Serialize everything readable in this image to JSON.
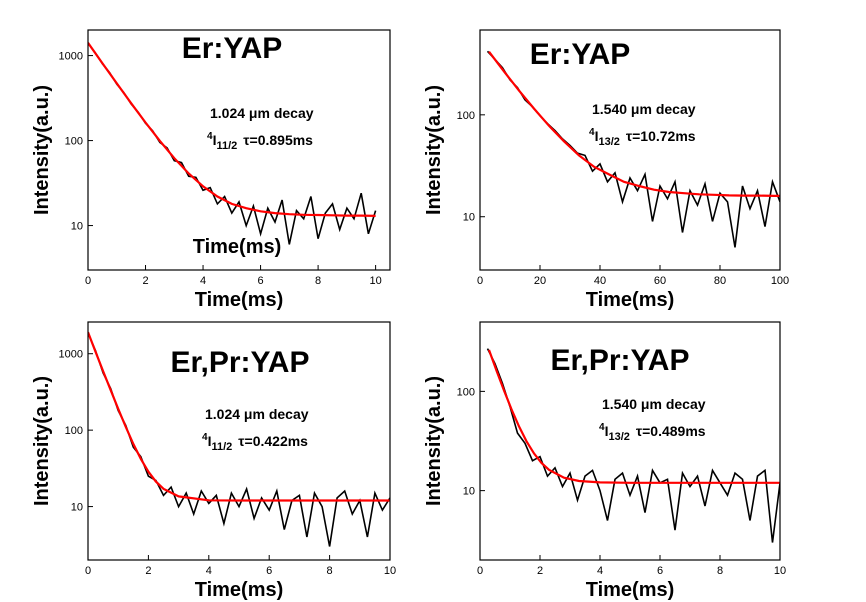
{
  "chart_data": [
    {
      "type": "line",
      "title": "Er:YAP",
      "xlabel": "Time(ms)",
      "ylabel": "Intensity(a.u.)",
      "note": "Time(ms)",
      "annotation": {
        "decay": "1.024 μm decay",
        "level": {
          "sup": "4",
          "base": "I",
          "sub": "11/2"
        },
        "lifetime": "τ=0.895ms"
      },
      "xlim": [
        0,
        10.5
      ],
      "xticks": [
        0,
        2,
        4,
        6,
        8,
        10
      ],
      "ylim": [
        3,
        2000
      ],
      "yticks": [
        10,
        100,
        1000
      ],
      "log_y": true,
      "series": [
        {
          "color": "#000000",
          "x": [
            0,
            0.25,
            0.5,
            0.75,
            1,
            1.25,
            1.5,
            1.75,
            2,
            2.25,
            2.5,
            2.75,
            3,
            3.25,
            3.5,
            3.75,
            4,
            4.25,
            4.5,
            4.75,
            5,
            5.25,
            5.5,
            5.75,
            6,
            6.25,
            6.5,
            6.75,
            7,
            7.25,
            7.5,
            7.75,
            8,
            8.25,
            8.5,
            8.75,
            9,
            9.25,
            9.5,
            9.75,
            10
          ],
          "values": [
            1400,
            1080,
            800,
            630,
            460,
            365,
            270,
            215,
            160,
            130,
            95,
            82,
            58,
            55,
            38,
            37,
            26,
            28,
            18,
            22,
            14,
            19,
            10,
            17,
            8,
            16,
            11,
            20,
            6,
            15,
            12,
            22,
            7,
            14,
            18,
            9,
            16,
            12,
            24,
            8,
            15
          ]
        },
        {
          "color": "#ff0000",
          "x": [
            0,
            0.5,
            1,
            1.5,
            2,
            2.5,
            3,
            3.5,
            4,
            4.5,
            5,
            5.5,
            6,
            6.5,
            7,
            7.5,
            8,
            8.5,
            9,
            9.5,
            10
          ],
          "values": [
            1413,
            814,
            471,
            275,
            163,
            99,
            62,
            41,
            29,
            22,
            18,
            16,
            14.7,
            14,
            13.6,
            13.4,
            13.3,
            13.2,
            13.1,
            13.1,
            13
          ]
        }
      ]
    },
    {
      "type": "line",
      "title": "Er:YAP",
      "xlabel": "Time(ms)",
      "ylabel": "Intensity(a.u.)",
      "annotation": {
        "decay": "1.540 μm decay",
        "level": {
          "sup": "4",
          "base": "I",
          "sub": "13/2"
        },
        "lifetime": "τ=10.72ms"
      },
      "xlim": [
        0,
        100
      ],
      "xticks": [
        0,
        20,
        40,
        60,
        80,
        100
      ],
      "ylim": [
        3,
        680
      ],
      "yticks": [
        10,
        100
      ],
      "log_y": true,
      "series": [
        {
          "color": "#000000",
          "x": [
            2.5,
            5,
            7.5,
            10,
            12.5,
            15,
            17.5,
            20,
            22.5,
            25,
            27.5,
            30,
            32.5,
            35,
            37.5,
            40,
            42.5,
            45,
            47.5,
            50,
            52.5,
            55,
            57.5,
            60,
            62.5,
            65,
            67.5,
            70,
            72.5,
            75,
            77.5,
            80,
            82.5,
            85,
            87.5,
            90,
            92.5,
            95,
            97.5,
            100
          ],
          "values": [
            420,
            350,
            290,
            220,
            185,
            140,
            120,
            98,
            82,
            70,
            58,
            50,
            42,
            40,
            28,
            33,
            22,
            27,
            14,
            24,
            18,
            26,
            9,
            20,
            15,
            22,
            7,
            18,
            13,
            21,
            9,
            17,
            14,
            5,
            20,
            12,
            18,
            8,
            22,
            14
          ]
        },
        {
          "color": "#ff0000",
          "x": [
            3,
            8,
            13,
            18,
            23,
            28,
            33,
            38,
            43,
            48,
            53,
            58,
            63,
            68,
            73,
            78,
            83,
            88,
            93,
            98,
            100
          ],
          "values": [
            416,
            267,
            173,
            115,
            78,
            55,
            40,
            31,
            26,
            22,
            20,
            18.4,
            17.5,
            17,
            16.6,
            16.4,
            16.2,
            16.1,
            16.1,
            16,
            16
          ]
        }
      ]
    },
    {
      "type": "line",
      "title": "Er,Pr:YAP",
      "xlabel": "Time(ms)",
      "ylabel": "Intensity(a.u.)",
      "annotation": {
        "decay": "1.024 μm decay",
        "level": {
          "sup": "4",
          "base": "I",
          "sub": "11/2"
        },
        "lifetime": "τ=0.422ms"
      },
      "xlim": [
        0,
        10
      ],
      "xticks": [
        0,
        2,
        4,
        6,
        8,
        10
      ],
      "ylim": [
        2,
        2600
      ],
      "yticks": [
        10,
        100,
        1000
      ],
      "log_y": true,
      "series": [
        {
          "color": "#000000",
          "x": [
            0,
            0.25,
            0.5,
            0.75,
            1,
            1.25,
            1.5,
            1.75,
            2,
            2.25,
            2.5,
            2.75,
            3,
            3.25,
            3.5,
            3.75,
            4,
            4.25,
            4.5,
            4.75,
            5,
            5.25,
            5.5,
            5.75,
            6,
            6.25,
            6.5,
            6.75,
            7,
            7.25,
            7.5,
            7.75,
            8,
            8.25,
            8.5,
            8.75,
            9,
            9.25,
            9.5,
            9.75,
            10
          ],
          "values": [
            1850,
            1100,
            560,
            350,
            180,
            115,
            60,
            45,
            25,
            22,
            14,
            18,
            10,
            15,
            8,
            16,
            11,
            14,
            6,
            15,
            10,
            17,
            7,
            13,
            9,
            16,
            5,
            12,
            14,
            4,
            15,
            10,
            3,
            13,
            16,
            8,
            12,
            4,
            15,
            9,
            13
          ]
        },
        {
          "color": "#ff0000",
          "x": [
            0,
            0.25,
            0.5,
            0.75,
            1,
            1.25,
            1.5,
            1.75,
            2,
            2.25,
            2.5,
            3,
            4,
            5,
            6,
            7,
            8,
            9,
            10
          ],
          "values": [
            1912,
            1063,
            593,
            333,
            190,
            110,
            66,
            42,
            28.6,
            21.2,
            17.1,
            13.6,
            12.1,
            12,
            12,
            12,
            12,
            12,
            12
          ]
        }
      ]
    },
    {
      "type": "line",
      "title": "Er,Pr:YAP",
      "xlabel": "Time(ms)",
      "ylabel": "Intensity(a.u.)",
      "annotation": {
        "decay": "1.540 μm decay",
        "level": {
          "sup": "4",
          "base": "I",
          "sub": "13/2"
        },
        "lifetime": "τ=0.489ms"
      },
      "xlim": [
        0,
        10
      ],
      "xticks": [
        0,
        2,
        4,
        6,
        8,
        10
      ],
      "ylim": [
        2,
        500
      ],
      "yticks": [
        10,
        100
      ],
      "log_y": true,
      "series": [
        {
          "color": "#000000",
          "x": [
            0.25,
            0.5,
            0.75,
            1,
            1.25,
            1.5,
            1.75,
            2,
            2.25,
            2.5,
            2.75,
            3,
            3.25,
            3.5,
            3.75,
            4,
            4.25,
            4.5,
            4.75,
            5,
            5.25,
            5.5,
            5.75,
            6,
            6.25,
            6.5,
            6.75,
            7,
            7.25,
            7.5,
            7.75,
            8,
            8.25,
            8.5,
            8.75,
            9,
            9.25,
            9.5,
            9.75,
            10
          ],
          "values": [
            270,
            190,
            120,
            70,
            38,
            30,
            20,
            22,
            14,
            17,
            11,
            15,
            8,
            14,
            16,
            10,
            5,
            13,
            15,
            9,
            14,
            6,
            16,
            12,
            13,
            4,
            15,
            11,
            14,
            7,
            16,
            12,
            9,
            15,
            13,
            5,
            14,
            16,
            3,
            12
          ]
        },
        {
          "color": "#ff0000",
          "x": [
            0.3,
            0.55,
            0.8,
            1.05,
            1.3,
            1.55,
            1.8,
            2.05,
            2.3,
            2.8,
            3.3,
            4,
            5,
            6,
            7,
            8,
            9,
            10
          ],
          "values": [
            262,
            162,
            102,
            66,
            44.4,
            31.4,
            23.7,
            19,
            16.2,
            13.5,
            12.5,
            12.1,
            12,
            12,
            12,
            12,
            12,
            12
          ]
        }
      ]
    }
  ]
}
